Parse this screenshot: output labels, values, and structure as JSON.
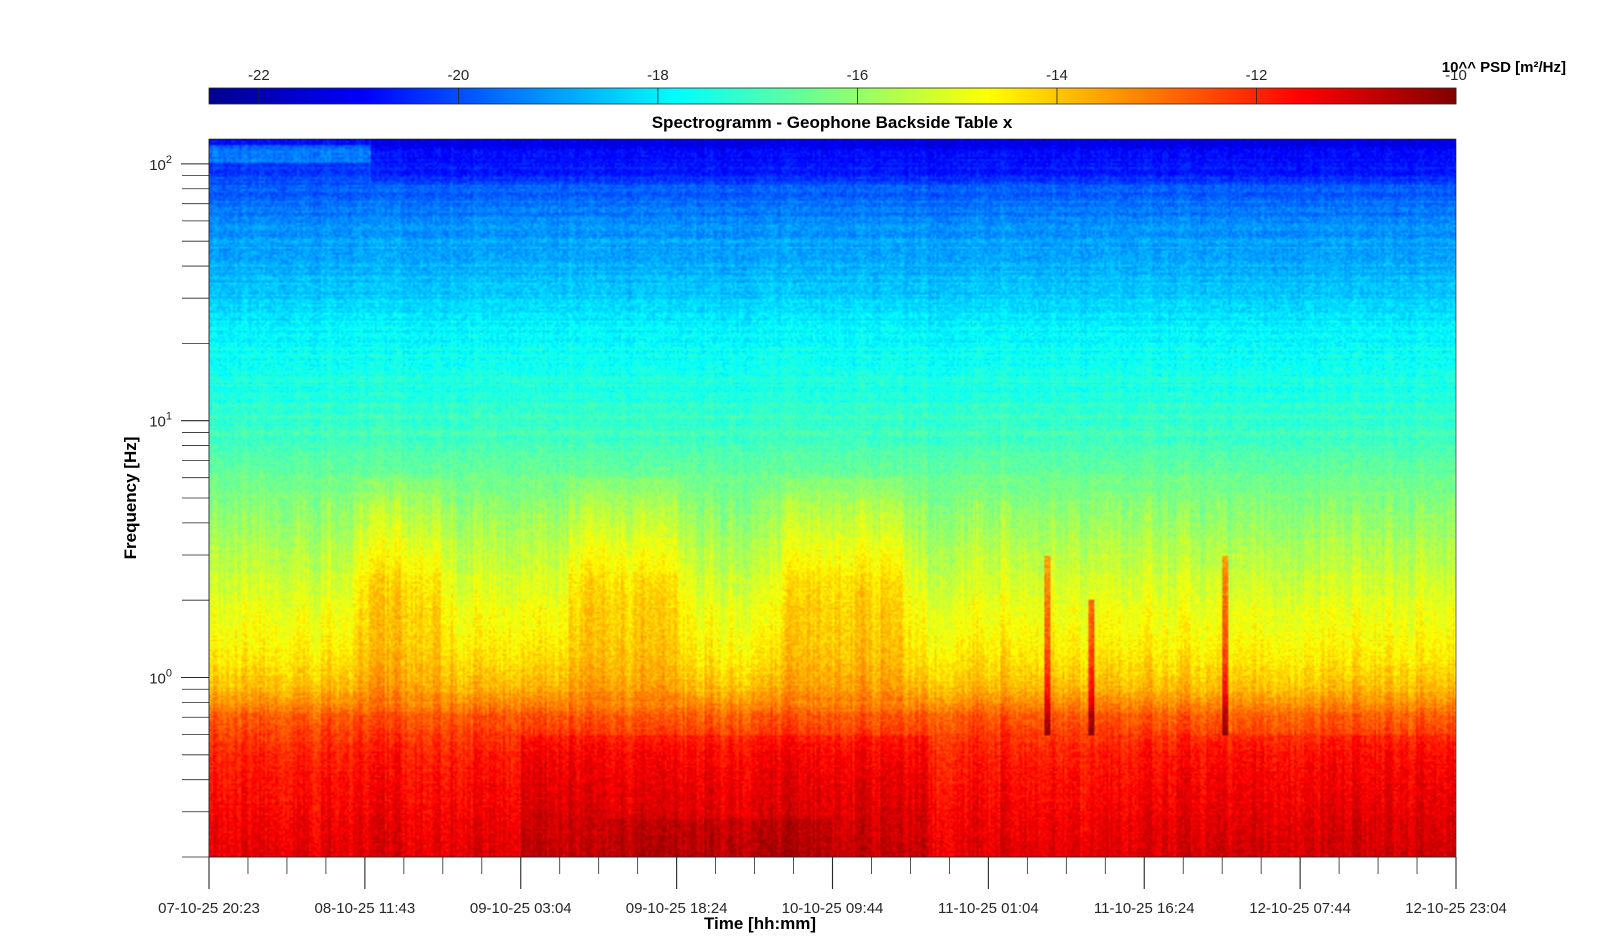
{
  "chart_data": {
    "type": "heatmap",
    "title": "Spectrogramm - Geophone Backside Table x",
    "xlabel": "Time [hh:mm]",
    "ylabel": "Frequency [Hz]",
    "x_tick_labels": [
      "07-10-25 20:23",
      "08-10-25 11:43",
      "09-10-25 03:04",
      "09-10-25 18:24",
      "10-10-25 09:44",
      "11-10-25 01:04",
      "11-10-25 16:24",
      "12-10-25 07:44",
      "12-10-25 23:04"
    ],
    "y_scale": "log",
    "ylim": [
      0.2,
      125
    ],
    "y_tick_values": [
      1,
      10,
      100
    ],
    "y_tick_labels": [
      {
        "base": "10",
        "exp": "0"
      },
      {
        "base": "10",
        "exp": "1"
      },
      {
        "base": "10",
        "exp": "2"
      }
    ],
    "colorbar": {
      "label": "10^^ PSD [m²/Hz]",
      "placement": "top",
      "range": [
        -22.5,
        -10
      ],
      "tick_values": [
        -22,
        -20,
        -18,
        -16,
        -14,
        -12,
        -10
      ],
      "tick_labels": [
        "-22",
        "-20",
        "-18",
        "-16",
        "-14",
        "-12",
        "-10"
      ],
      "colormap": "jet"
    },
    "z_profile": {
      "description_values": "approx log10 PSD level by frequency (Hz)",
      "freq": [
        0.2,
        0.3,
        0.5,
        0.7,
        0.9,
        1.2,
        2,
        3,
        5,
        8,
        12,
        20,
        30,
        50,
        80,
        125
      ],
      "level": [
        -11.2,
        -11.5,
        -11.9,
        -12.6,
        -13.8,
        -14.4,
        -15.0,
        -15.5,
        -16.2,
        -16.9,
        -17.3,
        -17.8,
        -18.4,
        -19.0,
        -19.8,
        -20.9
      ]
    },
    "features": [
      {
        "type": "vertical_spike",
        "time_fraction": 0.672,
        "freq_range": [
          0.6,
          3
        ]
      },
      {
        "type": "vertical_spike",
        "time_fraction": 0.708,
        "freq_range": [
          0.6,
          2
        ]
      },
      {
        "type": "vertical_spike",
        "time_fraction": 0.815,
        "freq_range": [
          0.6,
          3
        ]
      }
    ]
  }
}
